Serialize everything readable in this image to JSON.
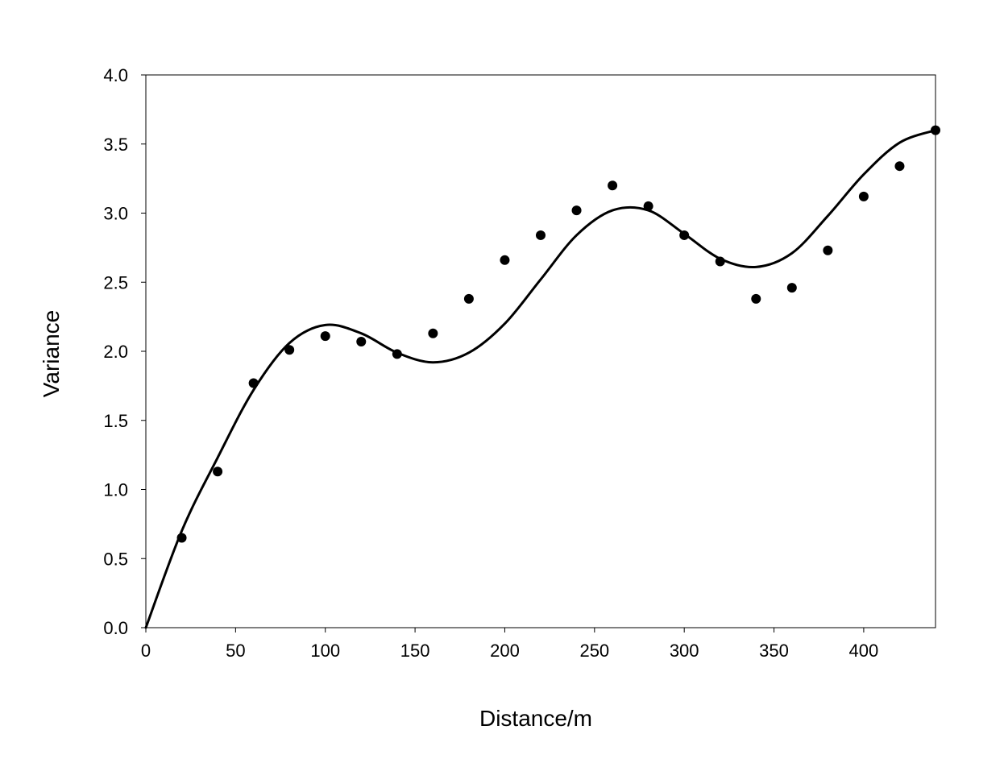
{
  "chart_data": {
    "type": "scatter",
    "title": "",
    "xlabel": "Distance/m",
    "ylabel": "Variance",
    "xlim": [
      0,
      440
    ],
    "ylim": [
      0,
      4.0
    ],
    "x_ticks": [
      "0",
      "50",
      "100",
      "150",
      "200",
      "250",
      "300",
      "350",
      "400"
    ],
    "y_ticks": [
      "0.0",
      "0.5",
      "1.0",
      "1.5",
      "2.0",
      "2.5",
      "3.0",
      "3.5",
      "4.0"
    ],
    "grid": false,
    "legend": "none",
    "series": [
      {
        "kind": "points",
        "marker": "filled-circle",
        "color": "#000000",
        "x": [
          20,
          40,
          60,
          80,
          100,
          120,
          140,
          160,
          180,
          200,
          220,
          240,
          260,
          280,
          300,
          320,
          340,
          360,
          380,
          400,
          420,
          440
        ],
        "y": [
          0.65,
          1.13,
          1.77,
          2.01,
          2.11,
          2.07,
          1.98,
          2.13,
          2.38,
          2.66,
          2.84,
          3.02,
          3.2,
          3.05,
          2.84,
          2.65,
          2.38,
          2.46,
          2.73,
          3.12,
          3.34,
          3.6
        ]
      },
      {
        "kind": "line",
        "color": "#000000",
        "x": [
          0,
          20,
          40,
          60,
          80,
          100,
          120,
          140,
          160,
          180,
          200,
          220,
          240,
          260,
          280,
          300,
          320,
          340,
          360,
          380,
          400,
          420,
          440
        ],
        "y": [
          0.0,
          0.7,
          1.23,
          1.72,
          2.06,
          2.19,
          2.13,
          1.99,
          1.92,
          1.99,
          2.2,
          2.52,
          2.84,
          3.02,
          3.02,
          2.85,
          2.67,
          2.61,
          2.71,
          2.98,
          3.28,
          3.51,
          3.6
        ]
      }
    ]
  }
}
